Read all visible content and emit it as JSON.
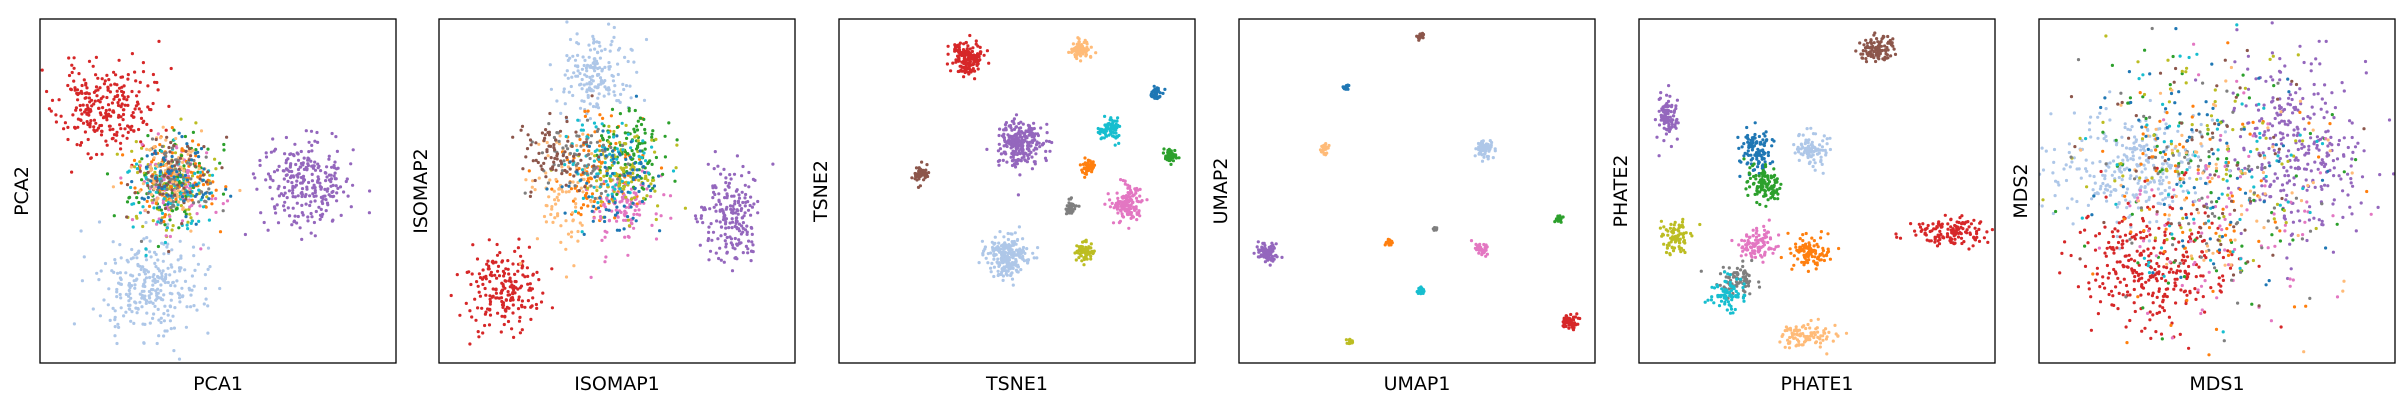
{
  "chart_data": [
    {
      "type": "scatter",
      "xlabel": "PCA1",
      "ylabel": "PCA2",
      "xlim": [
        0,
        100
      ],
      "ylim": [
        0,
        100
      ],
      "grid": false,
      "legend": "none",
      "clusters": [
        {
          "color": "#d62728",
          "x": 18,
          "y": 74,
          "sx": 6.5,
          "sy": 6.5,
          "n": 260
        },
        {
          "color": "#aec7e8",
          "x": 32,
          "y": 22,
          "sx": 7.5,
          "sy": 7,
          "n": 280
        },
        {
          "color": "#9467bd",
          "x": 75,
          "y": 52,
          "sx": 6.5,
          "sy": 7,
          "n": 260
        },
        {
          "color": "#bcbd22",
          "x": 37,
          "y": 52,
          "sx": 6,
          "sy": 6.5,
          "n": 110
        },
        {
          "color": "#2ca02c",
          "x": 36,
          "y": 53,
          "sx": 6,
          "sy": 6.5,
          "n": 90
        },
        {
          "color": "#e377c2",
          "x": 38,
          "y": 50,
          "sx": 6,
          "sy": 6.5,
          "n": 90
        },
        {
          "color": "#ff7f0e",
          "x": 37,
          "y": 54,
          "sx": 6,
          "sy": 6.5,
          "n": 90
        },
        {
          "color": "#17becf",
          "x": 36,
          "y": 50,
          "sx": 6,
          "sy": 6.5,
          "n": 80
        },
        {
          "color": "#7f7f7f",
          "x": 38,
          "y": 52,
          "sx": 6,
          "sy": 6.5,
          "n": 70
        },
        {
          "color": "#ffbb78",
          "x": 37,
          "y": 56,
          "sx": 6,
          "sy": 6,
          "n": 70
        },
        {
          "color": "#8c564b",
          "x": 37,
          "y": 54,
          "sx": 5.5,
          "sy": 6,
          "n": 60
        },
        {
          "color": "#1f77b4",
          "x": 38,
          "y": 53,
          "sx": 5.5,
          "sy": 6,
          "n": 60
        }
      ]
    },
    {
      "type": "scatter",
      "xlabel": "ISOMAP1",
      "ylabel": "ISOMAP2",
      "xlim": [
        0,
        100
      ],
      "ylim": [
        0,
        100
      ],
      "grid": false,
      "legend": "none",
      "clusters": [
        {
          "color": "#aec7e8",
          "x": 44,
          "y": 84,
          "sx": 5,
          "sy": 6,
          "n": 180
        },
        {
          "color": "#d62728",
          "x": 18,
          "y": 21,
          "sx": 5.5,
          "sy": 6,
          "n": 200
        },
        {
          "color": "#9467bd",
          "x": 82,
          "y": 42,
          "sx": 4.5,
          "sy": 7,
          "n": 200
        },
        {
          "color": "#ff7f0e",
          "x": 45,
          "y": 54,
          "sx": 7,
          "sy": 8,
          "n": 110
        },
        {
          "color": "#ffbb78",
          "x": 35,
          "y": 48,
          "sx": 5,
          "sy": 8,
          "n": 90
        },
        {
          "color": "#e377c2",
          "x": 52,
          "y": 45,
          "sx": 5,
          "sy": 5,
          "n": 110
        },
        {
          "color": "#2ca02c",
          "x": 55,
          "y": 62,
          "sx": 5,
          "sy": 5.5,
          "n": 110
        },
        {
          "color": "#bcbd22",
          "x": 52,
          "y": 55,
          "sx": 6,
          "sy": 6,
          "n": 100
        },
        {
          "color": "#17becf",
          "x": 46,
          "y": 58,
          "sx": 6,
          "sy": 7,
          "n": 80
        },
        {
          "color": "#7f7f7f",
          "x": 40,
          "y": 60,
          "sx": 6,
          "sy": 6,
          "n": 70
        },
        {
          "color": "#8c564b",
          "x": 33,
          "y": 62,
          "sx": 6,
          "sy": 5,
          "n": 80
        },
        {
          "color": "#1f77b4",
          "x": 48,
          "y": 52,
          "sx": 7,
          "sy": 7,
          "n": 80
        }
      ]
    },
    {
      "type": "scatter",
      "xlabel": "TSNE1",
      "ylabel": "TSNE2",
      "xlim": [
        0,
        100
      ],
      "ylim": [
        0,
        100
      ],
      "grid": false,
      "legend": "none",
      "clusters": [
        {
          "color": "#d62728",
          "x": 36,
          "y": 89,
          "sx": 2.2,
          "sy": 2.5,
          "n": 180
        },
        {
          "color": "#ffbb78",
          "x": 68,
          "y": 91,
          "sx": 1.4,
          "sy": 1.6,
          "n": 80
        },
        {
          "color": "#9467bd",
          "x": 51,
          "y": 64,
          "sx": 3.2,
          "sy": 3.6,
          "n": 260
        },
        {
          "color": "#17becf",
          "x": 76,
          "y": 68,
          "sx": 1.4,
          "sy": 1.6,
          "n": 80
        },
        {
          "color": "#1f77b4",
          "x": 89,
          "y": 78,
          "sx": 0.8,
          "sy": 1,
          "n": 40
        },
        {
          "color": "#2ca02c",
          "x": 93,
          "y": 60,
          "sx": 0.9,
          "sy": 1.1,
          "n": 50
        },
        {
          "color": "#ff7f0e",
          "x": 70,
          "y": 57,
          "sx": 1,
          "sy": 1.2,
          "n": 50
        },
        {
          "color": "#8c564b",
          "x": 23,
          "y": 55,
          "sx": 1,
          "sy": 1.2,
          "n": 60
        },
        {
          "color": "#e377c2",
          "x": 81,
          "y": 46,
          "sx": 2,
          "sy": 2.4,
          "n": 140
        },
        {
          "color": "#7f7f7f",
          "x": 65,
          "y": 45,
          "sx": 0.9,
          "sy": 1.1,
          "n": 40
        },
        {
          "color": "#aec7e8",
          "x": 47,
          "y": 31,
          "sx": 2.8,
          "sy": 3.2,
          "n": 240
        },
        {
          "color": "#bcbd22",
          "x": 69,
          "y": 32,
          "sx": 1.2,
          "sy": 1.4,
          "n": 60
        }
      ]
    },
    {
      "type": "scatter",
      "xlabel": "UMAP1",
      "ylabel": "UMAP2",
      "xlim": [
        0,
        100
      ],
      "ylim": [
        0,
        100
      ],
      "grid": false,
      "legend": "none",
      "clusters": [
        {
          "color": "#8c564b",
          "x": 51,
          "y": 95,
          "sx": 0.5,
          "sy": 0.5,
          "n": 25
        },
        {
          "color": "#1f77b4",
          "x": 30,
          "y": 80,
          "sx": 0.4,
          "sy": 0.4,
          "n": 20
        },
        {
          "color": "#ffbb78",
          "x": 24,
          "y": 62,
          "sx": 0.6,
          "sy": 0.7,
          "n": 30
        },
        {
          "color": "#aec7e8",
          "x": 69,
          "y": 62,
          "sx": 1.2,
          "sy": 1.1,
          "n": 70
        },
        {
          "color": "#2ca02c",
          "x": 90,
          "y": 42,
          "sx": 0.5,
          "sy": 0.5,
          "n": 20
        },
        {
          "color": "#7f7f7f",
          "x": 55,
          "y": 39,
          "sx": 0.3,
          "sy": 0.3,
          "n": 15
        },
        {
          "color": "#ff7f0e",
          "x": 42,
          "y": 35,
          "sx": 0.5,
          "sy": 0.5,
          "n": 20
        },
        {
          "color": "#e377c2",
          "x": 68,
          "y": 33,
          "sx": 0.9,
          "sy": 0.9,
          "n": 50
        },
        {
          "color": "#9467bd",
          "x": 8,
          "y": 32,
          "sx": 1.4,
          "sy": 1.4,
          "n": 90
        },
        {
          "color": "#17becf",
          "x": 51,
          "y": 21,
          "sx": 0.6,
          "sy": 0.6,
          "n": 25
        },
        {
          "color": "#d62728",
          "x": 93,
          "y": 12,
          "sx": 1.1,
          "sy": 0.9,
          "n": 60
        },
        {
          "color": "#bcbd22",
          "x": 31,
          "y": 6,
          "sx": 0.5,
          "sy": 0.5,
          "n": 20
        }
      ]
    },
    {
      "type": "scatter",
      "xlabel": "PHATE1",
      "ylabel": "PHATE2",
      "xlim": [
        0,
        100
      ],
      "ylim": [
        0,
        100
      ],
      "grid": false,
      "legend": "none",
      "clusters": [
        {
          "color": "#8c564b",
          "x": 67,
          "y": 91,
          "sx": 2.5,
          "sy": 1.8,
          "n": 100
        },
        {
          "color": "#9467bd",
          "x": 8,
          "y": 72,
          "sx": 1.2,
          "sy": 3.5,
          "n": 90
        },
        {
          "color": "#1f77b4",
          "x": 33,
          "y": 62,
          "sx": 2.5,
          "sy": 4,
          "n": 110
        },
        {
          "color": "#aec7e8",
          "x": 49,
          "y": 62,
          "sx": 2.5,
          "sy": 2.5,
          "n": 90
        },
        {
          "color": "#2ca02c",
          "x": 35,
          "y": 52,
          "sx": 2.5,
          "sy": 2.5,
          "n": 110
        },
        {
          "color": "#d62728",
          "x": 87,
          "y": 38,
          "sx": 5,
          "sy": 2,
          "n": 140
        },
        {
          "color": "#e377c2",
          "x": 33,
          "y": 35,
          "sx": 2.8,
          "sy": 2.2,
          "n": 100
        },
        {
          "color": "#ff7f0e",
          "x": 48,
          "y": 32,
          "sx": 2.8,
          "sy": 2.5,
          "n": 100
        },
        {
          "color": "#bcbd22",
          "x": 10,
          "y": 37,
          "sx": 2.2,
          "sy": 2.5,
          "n": 80
        },
        {
          "color": "#7f7f7f",
          "x": 28,
          "y": 24,
          "sx": 2.5,
          "sy": 2.2,
          "n": 80
        },
        {
          "color": "#17becf",
          "x": 25,
          "y": 20,
          "sx": 2.5,
          "sy": 2.5,
          "n": 80
        },
        {
          "color": "#ffbb78",
          "x": 47,
          "y": 8,
          "sx": 4,
          "sy": 2,
          "n": 100
        }
      ]
    },
    {
      "type": "scatter",
      "xlabel": "MDS1",
      "ylabel": "MDS2",
      "xlim": [
        0,
        100
      ],
      "ylim": [
        0,
        100
      ],
      "grid": false,
      "legend": "none",
      "clusters": [
        {
          "color": "#9467bd",
          "x": 72,
          "y": 62,
          "sx": 9,
          "sy": 13,
          "n": 320
        },
        {
          "color": "#aec7e8",
          "x": 26,
          "y": 57,
          "sx": 11,
          "sy": 8,
          "n": 300
        },
        {
          "color": "#d62728",
          "x": 33,
          "y": 28,
          "sx": 10,
          "sy": 9,
          "n": 320
        },
        {
          "color": "#2ca02c",
          "x": 46,
          "y": 55,
          "sx": 18,
          "sy": 19,
          "n": 80
        },
        {
          "color": "#e377c2",
          "x": 52,
          "y": 42,
          "sx": 16,
          "sy": 18,
          "n": 90
        },
        {
          "color": "#ff7f0e",
          "x": 47,
          "y": 50,
          "sx": 18,
          "sy": 19,
          "n": 80
        },
        {
          "color": "#bcbd22",
          "x": 44,
          "y": 60,
          "sx": 16,
          "sy": 18,
          "n": 80
        },
        {
          "color": "#17becf",
          "x": 47,
          "y": 55,
          "sx": 18,
          "sy": 19,
          "n": 70
        },
        {
          "color": "#7f7f7f",
          "x": 48,
          "y": 50,
          "sx": 17,
          "sy": 19,
          "n": 70
        },
        {
          "color": "#ffbb78",
          "x": 50,
          "y": 52,
          "sx": 17,
          "sy": 18,
          "n": 70
        },
        {
          "color": "#8c564b",
          "x": 45,
          "y": 58,
          "sx": 17,
          "sy": 18,
          "n": 60
        },
        {
          "color": "#1f77b4",
          "x": 47,
          "y": 53,
          "sx": 18,
          "sy": 19,
          "n": 70
        }
      ]
    }
  ]
}
